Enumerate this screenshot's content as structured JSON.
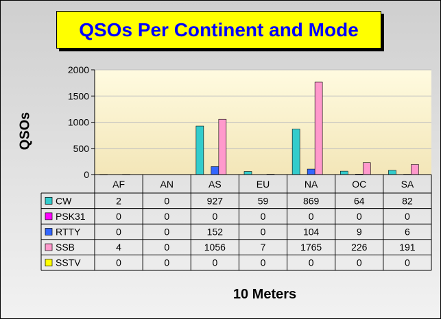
{
  "chart_data": {
    "type": "bar",
    "title": "QSOs Per Continent and Mode",
    "ylabel": "QSOs",
    "xlabel": "10 Meters",
    "ylim": [
      0,
      2000
    ],
    "yticks": [
      "0",
      "500",
      "1000",
      "1500",
      "2000"
    ],
    "categories": [
      "AF",
      "AN",
      "AS",
      "EU",
      "NA",
      "OC",
      "SA"
    ],
    "series": [
      {
        "name": "CW",
        "color": "#33cccc",
        "values": [
          2,
          0,
          927,
          59,
          869,
          64,
          82
        ]
      },
      {
        "name": "PSK31",
        "color": "#ff00ff",
        "values": [
          0,
          0,
          0,
          0,
          0,
          0,
          0
        ]
      },
      {
        "name": "RTTY",
        "color": "#3366ff",
        "values": [
          0,
          0,
          152,
          0,
          104,
          9,
          6
        ]
      },
      {
        "name": "SSB",
        "color": "#ff99cc",
        "values": [
          4,
          0,
          1056,
          7,
          1765,
          226,
          191
        ]
      },
      {
        "name": "SSTV",
        "color": "#ffff00",
        "values": [
          0,
          0,
          0,
          0,
          0,
          0,
          0
        ]
      }
    ],
    "grid": true,
    "legend": "data table"
  }
}
